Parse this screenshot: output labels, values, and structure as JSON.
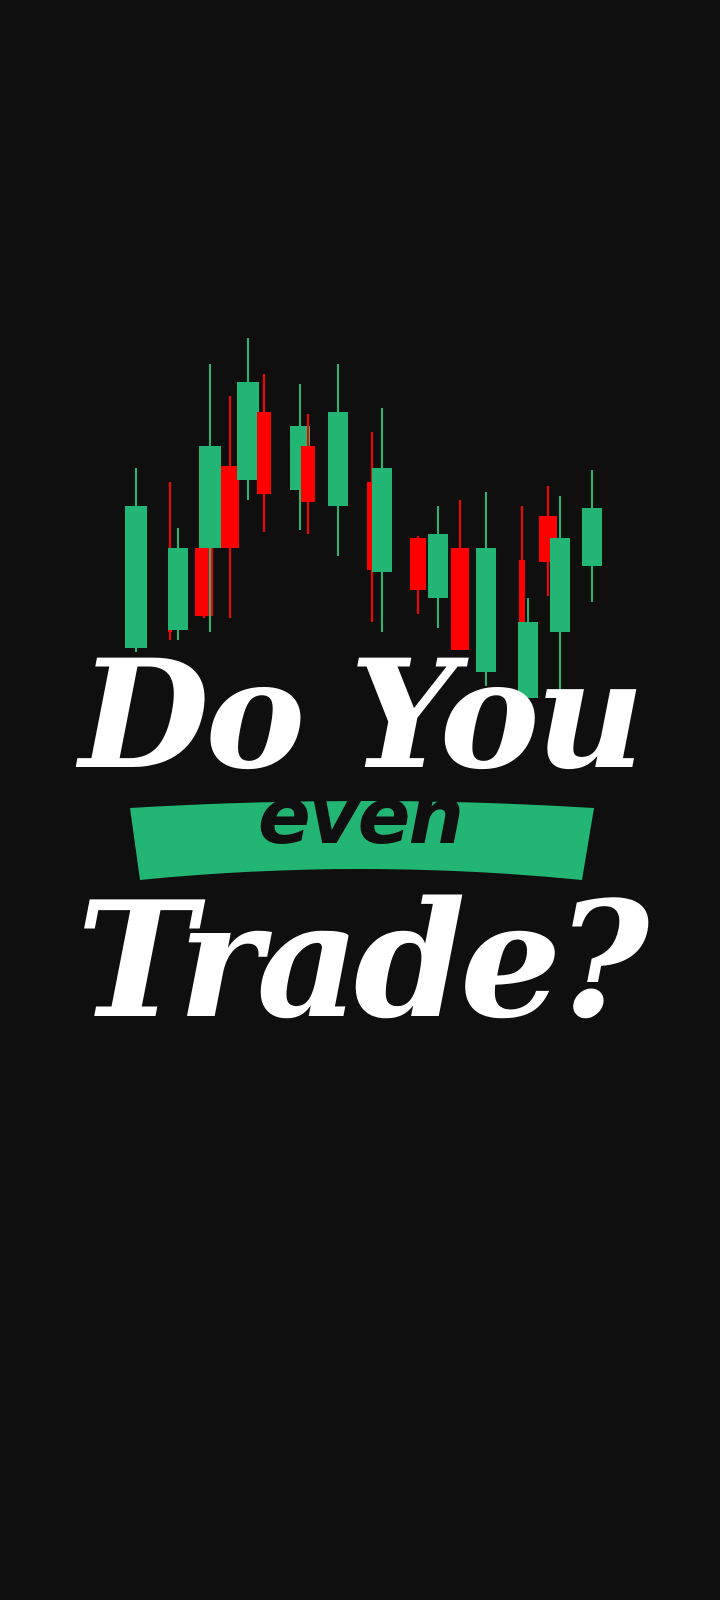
{
  "poster": {
    "line_top": "Do You",
    "banner_word": "even",
    "line_bottom": "Trade?"
  },
  "colors": {
    "background": "#0f0f0f",
    "bull": "#22b573",
    "bear": "#ff0000",
    "text": "#ffffff",
    "banner": "#22b573",
    "banner_text": "#0f0f0f"
  },
  "icons": {
    "candlestick_artwork": "candlestick-chart-icon"
  }
}
